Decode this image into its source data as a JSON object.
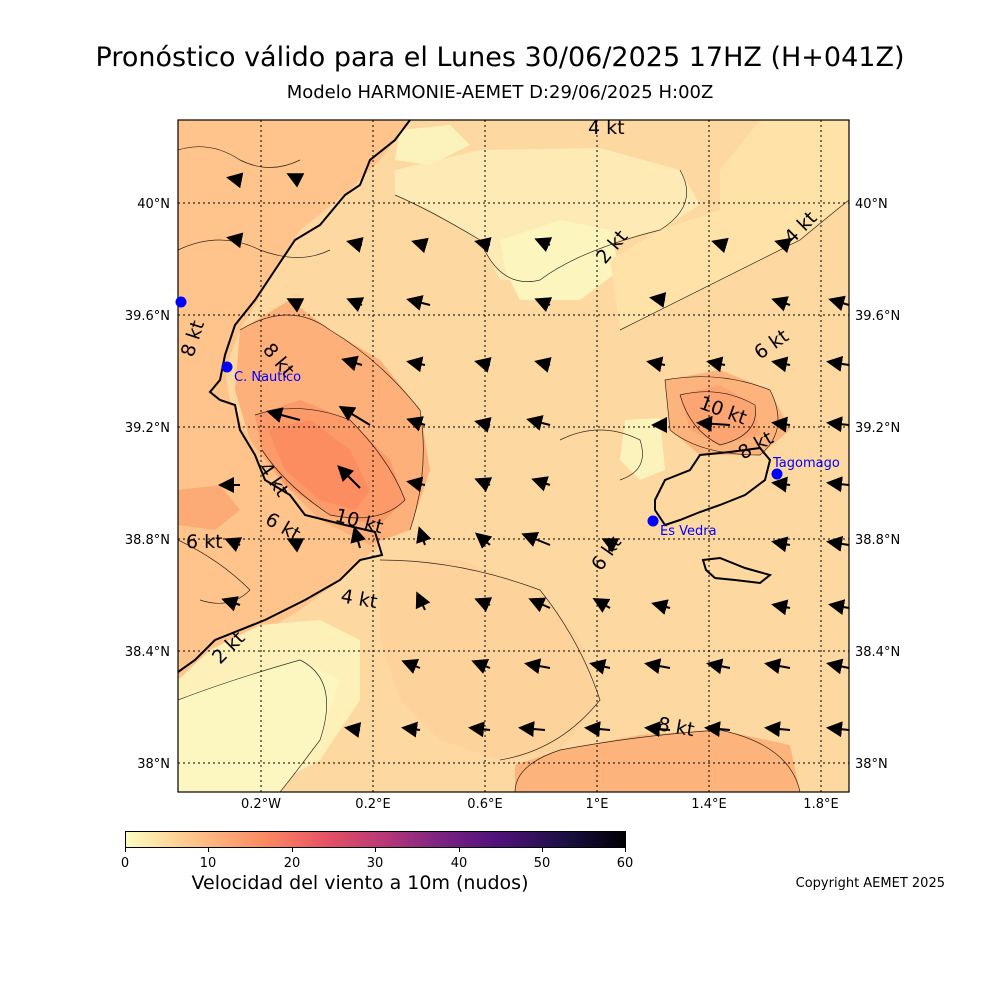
{
  "header": {
    "title": "Pronóstico válido para el Lunes 30/06/2025 17HZ (H+041Z)",
    "subtitle": "Modelo HARMONIE-AEMET D:29/06/2025 H:00Z"
  },
  "map": {
    "lat_ticks": [
      "40°N",
      "39.6°N",
      "39.2°N",
      "38.8°N",
      "38.4°N",
      "38°N"
    ],
    "lon_ticks": [
      "0.2°W",
      "0.2°E",
      "0.6°E",
      "1°E",
      "1.4°E",
      "1.8°E"
    ],
    "contour_labels": [
      "4 kt",
      "2 kt",
      "4 kt",
      "8 kt",
      "8 kt",
      "6 kt",
      "10 kt",
      "8 kt",
      "4 kt",
      "6 kt",
      "6 kt",
      "10 kt",
      "6 kt",
      "4 kt",
      "2 kt",
      "8 kt"
    ],
    "places": [
      {
        "name": "C. Nautico"
      },
      {
        "name": "Tagomago"
      },
      {
        "name": "Es Vedra"
      }
    ],
    "place_color": "#0000ff"
  },
  "colorbar": {
    "ticks": [
      "0",
      "10",
      "20",
      "30",
      "40",
      "50",
      "60"
    ],
    "label": "Velocidad del viento a 10m (nudos)",
    "colormap": "magma_r"
  },
  "footer": {
    "copyright": "Copyright AEMET 2025"
  }
}
